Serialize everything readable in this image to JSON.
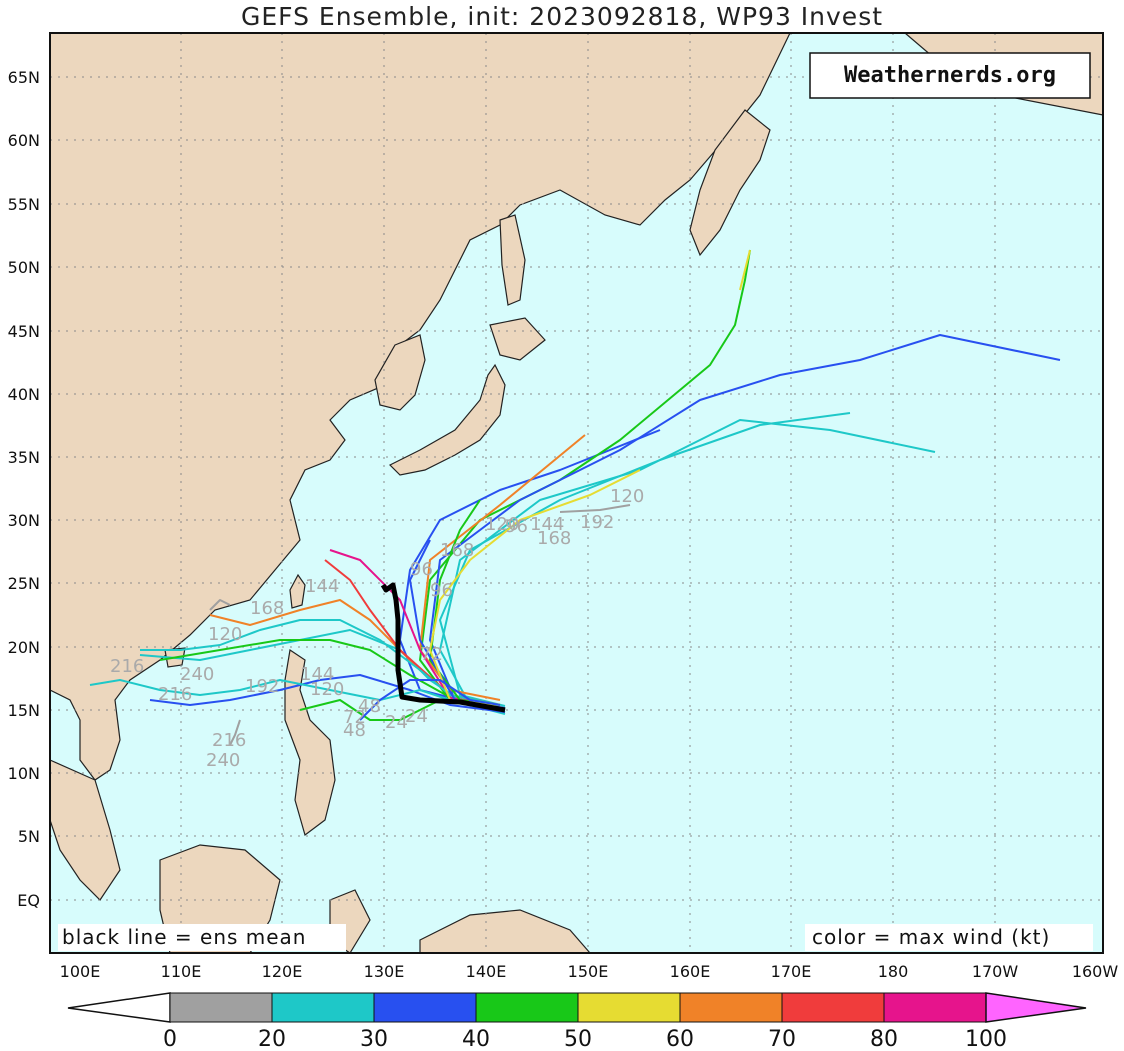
{
  "title": "GEFS Ensemble, init: 2023092818, WP93 Invest",
  "watermark": "Weathernerds.org",
  "note_left": "black line = ens mean",
  "note_right": "color = max wind (kt)",
  "lat_labels": [
    "65N",
    "60N",
    "55N",
    "50N",
    "45N",
    "40N",
    "35N",
    "30N",
    "25N",
    "20N",
    "15N",
    "10N",
    "5N",
    "EQ"
  ],
  "lat_values": [
    65,
    60,
    55,
    50,
    45,
    40,
    35,
    30,
    25,
    20,
    15,
    10,
    5,
    0
  ],
  "lon_labels": [
    "100E",
    "110E",
    "120E",
    "130E",
    "140E",
    "150E",
    "160E",
    "170E",
    "180",
    "170W",
    "160W"
  ],
  "lon_values": [
    100,
    110,
    120,
    130,
    140,
    150,
    160,
    170,
    180,
    190,
    200
  ],
  "colorbar": {
    "ticks": [
      "0",
      "20",
      "30",
      "40",
      "50",
      "60",
      "70",
      "80",
      "100"
    ],
    "colors": [
      "#a0a0a0",
      "#1ec8c8",
      "#2850f0",
      "#18c818",
      "#e6dc32",
      "#f08228",
      "#f03c3c",
      "#e6148c"
    ],
    "under_color": "#ffffff",
    "over_color": "#ff64ff"
  },
  "map_colors": {
    "ocean": "#d7fcfc",
    "land": "#ecd7be",
    "coast": "#222222",
    "grid": "#8a8a8a"
  },
  "track_labels": [
    "120",
    "192",
    "168",
    "144",
    "96",
    "120",
    "216",
    "240",
    "216",
    "192",
    "168",
    "144",
    "120",
    "96",
    "72",
    "48",
    "24",
    "240",
    "216",
    "168",
    "144",
    "120",
    "96",
    "72",
    "48",
    "24"
  ],
  "mean_track": {
    "lon": [
      142,
      138,
      134,
      132,
      131.5,
      131.5,
      131,
      130.5,
      130
    ],
    "lat": [
      14.9,
      15.6,
      15.9,
      16,
      18,
      22,
      24.5,
      24.8,
      24.5
    ]
  }
}
